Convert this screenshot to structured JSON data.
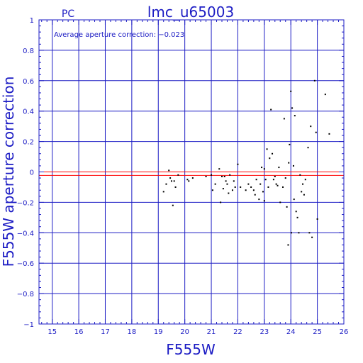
{
  "chart_data": {
    "type": "scatter",
    "title": "lmc_u65003",
    "subtitle": "PC",
    "annotation": "Average aperture correction: −0.023",
    "xlabel": "F555W",
    "ylabel": "F555W aperture correction",
    "xlim": [
      14.5,
      26
    ],
    "ylim": [
      -1,
      1
    ],
    "x_ticks": [
      15,
      16,
      17,
      18,
      19,
      20,
      21,
      22,
      23,
      24,
      25,
      26
    ],
    "y_ticks": [
      -1,
      -0.8,
      -0.6,
      -0.4,
      -0.2,
      0,
      0.2,
      0.4,
      0.6,
      0.8,
      1
    ],
    "y_tick_labels": [
      "−1",
      "−0.8",
      "−0.6",
      "−0.4",
      "−0.2",
      "0",
      "0.2",
      "0.4",
      "0.6",
      "0.8",
      "1"
    ],
    "grid": true,
    "reference_lines": [
      {
        "y": 0,
        "color": "#ff0000"
      },
      {
        "y": -0.023,
        "color": "#ff0000"
      }
    ],
    "colors": {
      "axis": "#1c1cc4",
      "grid": "#1c1cc4",
      "points": "#000000",
      "reference": "#ff0000"
    },
    "points": [
      [
        19.2,
        -0.13
      ],
      [
        19.3,
        -0.08
      ],
      [
        19.4,
        0.01
      ],
      [
        19.45,
        -0.04
      ],
      [
        19.5,
        -0.06
      ],
      [
        19.55,
        -0.22
      ],
      [
        19.6,
        -0.06
      ],
      [
        19.65,
        -0.1
      ],
      [
        19.75,
        -0.02
      ],
      [
        20.1,
        -0.05
      ],
      [
        20.15,
        -0.06
      ],
      [
        20.3,
        -0.04
      ],
      [
        20.8,
        -0.03
      ],
      [
        21.0,
        -0.02
      ],
      [
        21.05,
        -0.12
      ],
      [
        21.15,
        -0.08
      ],
      [
        21.3,
        0.02
      ],
      [
        21.35,
        -0.2
      ],
      [
        21.4,
        -0.03
      ],
      [
        21.45,
        -0.11
      ],
      [
        21.5,
        -0.03
      ],
      [
        21.55,
        -0.06
      ],
      [
        21.6,
        -0.08
      ],
      [
        21.65,
        -0.14
      ],
      [
        21.7,
        -0.02
      ],
      [
        21.8,
        -0.12
      ],
      [
        21.85,
        -0.06
      ],
      [
        21.9,
        -0.1
      ],
      [
        22.0,
        0.05
      ],
      [
        22.1,
        -0.1
      ],
      [
        22.3,
        -0.12
      ],
      [
        22.4,
        -0.08
      ],
      [
        22.5,
        -0.1
      ],
      [
        22.6,
        -0.12
      ],
      [
        22.65,
        -0.15
      ],
      [
        22.7,
        -0.05
      ],
      [
        22.8,
        -0.18
      ],
      [
        22.85,
        -0.08
      ],
      [
        22.9,
        0.03
      ],
      [
        22.95,
        -0.13
      ],
      [
        23.0,
        -0.19
      ],
      [
        23.0,
        0.02
      ],
      [
        23.05,
        -0.05
      ],
      [
        23.1,
        0.15
      ],
      [
        23.15,
        -0.1
      ],
      [
        23.2,
        0.09
      ],
      [
        23.25,
        0.41
      ],
      [
        23.3,
        0.12
      ],
      [
        23.35,
        -0.05
      ],
      [
        23.4,
        -0.03
      ],
      [
        23.45,
        -0.08
      ],
      [
        23.5,
        -0.09
      ],
      [
        23.55,
        0.03
      ],
      [
        23.6,
        -0.2
      ],
      [
        23.7,
        -0.1
      ],
      [
        23.75,
        0.35
      ],
      [
        23.8,
        -0.04
      ],
      [
        23.85,
        -0.23
      ],
      [
        23.9,
        -0.48
      ],
      [
        23.92,
        0.06
      ],
      [
        23.95,
        0.18
      ],
      [
        24.0,
        0.53
      ],
      [
        24.02,
        -0.4
      ],
      [
        24.05,
        0.42
      ],
      [
        24.1,
        0.04
      ],
      [
        24.12,
        -0.18
      ],
      [
        24.15,
        0.37
      ],
      [
        24.2,
        -0.26
      ],
      [
        24.25,
        -0.3
      ],
      [
        24.3,
        -0.4
      ],
      [
        24.35,
        -0.02
      ],
      [
        24.4,
        -0.13
      ],
      [
        24.45,
        -0.08
      ],
      [
        24.5,
        -0.15
      ],
      [
        24.55,
        -0.05
      ],
      [
        24.65,
        0.16
      ],
      [
        24.7,
        -0.4
      ],
      [
        24.75,
        0.3
      ],
      [
        24.8,
        -0.43
      ],
      [
        24.9,
        0.6
      ],
      [
        24.95,
        0.26
      ],
      [
        25.0,
        -0.31
      ],
      [
        25.3,
        0.51
      ],
      [
        25.45,
        0.25
      ]
    ]
  }
}
